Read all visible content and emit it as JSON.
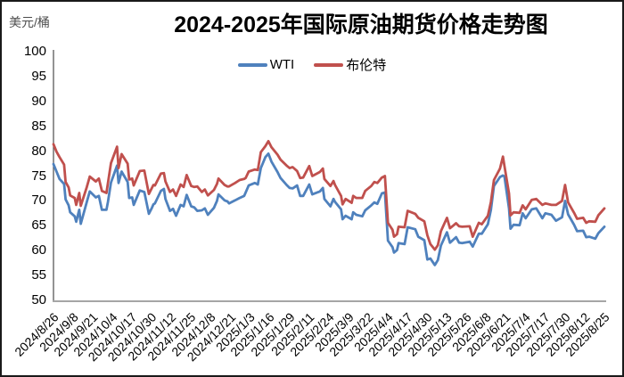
{
  "header": {
    "title": "2024-2025年国际原油期货价格走势图",
    "unit_label": "美元/桶"
  },
  "colors": {
    "wti": "#4F81BD",
    "brent": "#C0504D",
    "y_axis": "#595959",
    "x_axis": "#a6a6a6",
    "frame_border": "#1a1a1a"
  },
  "chart_data": {
    "type": "line",
    "title": "2024-2025年国际原油期货价格走势图",
    "xlabel": "",
    "ylabel": "美元/桶",
    "ylim": [
      50,
      100
    ],
    "ytick_step": 5,
    "grid": false,
    "legend_position": "top-center",
    "y_tick_labels": [
      "100",
      "95",
      "90",
      "85",
      "80",
      "75",
      "70",
      "65",
      "60",
      "55",
      "50"
    ],
    "x_tick_labels": [
      "2024/8/26",
      "2024/9/8",
      "2024/9/21",
      "2024/10/4",
      "2024/10/17",
      "2024/10/30",
      "2024/11/12",
      "2024/11/25",
      "2024/12/8",
      "2024/12/21",
      "2025/1/3",
      "2025/1/16",
      "2025/1/29",
      "2025/2/11",
      "2025/2/24",
      "2025/3/9",
      "2025/3/22",
      "2025/4/4",
      "2025/4/17",
      "2025/4/30",
      "2025/5/13",
      "2025/5/26",
      "2025/6/8",
      "2025/6/21",
      "2025/7/4",
      "2025/7/17",
      "2025/7/30",
      "2025/8/12",
      "2025/8/25"
    ],
    "x_range_days": [
      0,
      364
    ],
    "x_days": [
      0,
      2,
      4,
      7,
      8,
      10,
      11,
      14,
      15,
      17,
      18,
      22,
      24,
      28,
      30,
      32,
      35,
      36,
      38,
      42,
      43,
      45,
      49,
      50,
      52,
      53,
      57,
      60,
      63,
      65,
      66,
      67,
      71,
      73,
      74,
      77,
      79,
      81,
      84,
      86,
      88,
      91,
      93,
      95,
      98,
      100,
      102,
      106,
      108,
      109,
      113,
      115,
      116,
      120,
      123,
      126,
      127,
      129,
      133,
      135,
      137,
      140,
      142,
      144,
      148,
      150,
      154,
      156,
      158,
      161,
      163,
      165,
      169,
      171,
      176,
      178,
      179,
      183,
      185,
      186,
      190,
      191,
      193,
      197,
      198,
      200,
      204,
      206,
      210,
      212,
      214,
      217,
      219,
      221,
      224,
      225,
      227,
      228,
      232,
      234,
      239,
      241,
      245,
      247,
      249,
      252,
      254,
      256,
      260,
      262,
      266,
      268,
      270,
      275,
      277,
      281,
      283,
      287,
      289,
      291,
      295,
      297,
      298,
      301,
      302,
      304,
      308,
      310,
      312,
      316,
      319,
      323,
      325,
      329,
      332,
      336,
      338,
      340,
      344,
      346,
      350,
      352,
      354,
      358,
      360,
      364
    ],
    "series": [
      {
        "name": "WTI",
        "color": "#4F81BD",
        "values": [
          77.4,
          75.9,
          74.4,
          73.4,
          70.3,
          69.1,
          67.7,
          66.9,
          65.8,
          68.2,
          65.4,
          69.8,
          71.9,
          70.7,
          71.0,
          68.2,
          68.2,
          69.8,
          73.7,
          77.1,
          73.6,
          75.9,
          73.8,
          70.6,
          70.7,
          69.2,
          72.1,
          71.8,
          67.4,
          68.6,
          69.3,
          69.5,
          72.0,
          72.4,
          70.4,
          68.0,
          68.4,
          67.0,
          69.2,
          68.9,
          71.2,
          68.9,
          68.7,
          68.0,
          68.1,
          68.5,
          67.2,
          68.6,
          70.0,
          71.3,
          70.1,
          69.9,
          69.5,
          70.1,
          70.6,
          71.0,
          71.7,
          73.1,
          73.6,
          73.3,
          76.6,
          78.8,
          79.5,
          77.9,
          75.8,
          74.6,
          73.2,
          72.6,
          72.5,
          73.1,
          71.0,
          71.0,
          73.3,
          71.3,
          71.9,
          72.6,
          70.4,
          68.9,
          70.4,
          69.8,
          68.3,
          66.3,
          67.0,
          66.3,
          67.7,
          67.2,
          66.9,
          68.1,
          69.1,
          69.7,
          69.4,
          71.5,
          71.7,
          62.0,
          60.7,
          59.6,
          60.1,
          61.5,
          61.3,
          64.7,
          64.3,
          62.8,
          62.1,
          58.2,
          58.4,
          57.1,
          58.1,
          61.0,
          63.7,
          61.6,
          62.7,
          61.6,
          61.5,
          61.8,
          60.8,
          63.4,
          63.4,
          65.3,
          68.2,
          73.0,
          74.8,
          75.1,
          74.9,
          68.5,
          64.4,
          65.2,
          65.1,
          67.5,
          66.5,
          68.3,
          68.5,
          66.5,
          67.5,
          67.2,
          66.0,
          66.7,
          70.0,
          67.3,
          65.2,
          63.9,
          64.0,
          62.7,
          62.8,
          62.4,
          63.5,
          64.8
        ]
      },
      {
        "name": "布伦特",
        "color": "#C0504D",
        "values": [
          81.4,
          79.9,
          78.8,
          77.3,
          73.8,
          72.7,
          71.1,
          70.6,
          69.2,
          71.6,
          69.0,
          72.8,
          74.9,
          73.9,
          74.5,
          72.0,
          71.6,
          73.6,
          77.6,
          80.9,
          76.6,
          79.4,
          77.5,
          74.3,
          74.5,
          73.1,
          76.0,
          76.1,
          71.4,
          72.6,
          73.2,
          73.1,
          75.5,
          75.6,
          73.9,
          71.8,
          72.3,
          71.0,
          73.3,
          72.8,
          75.2,
          73.0,
          72.8,
          72.9,
          71.8,
          72.3,
          71.1,
          72.2,
          73.4,
          74.5,
          73.2,
          72.9,
          72.9,
          73.6,
          74.2,
          74.4,
          74.6,
          75.9,
          76.3,
          76.2,
          79.8,
          81.0,
          82.0,
          80.8,
          79.3,
          78.3,
          77.1,
          76.6,
          76.8,
          76.0,
          74.6,
          74.7,
          77.0,
          75.0,
          75.8,
          76.5,
          74.4,
          73.0,
          74.0,
          73.2,
          71.0,
          69.3,
          70.4,
          69.6,
          71.0,
          70.6,
          70.6,
          72.0,
          73.0,
          73.8,
          73.6,
          74.7,
          75.0,
          65.6,
          64.2,
          62.8,
          63.3,
          64.8,
          64.7,
          68.0,
          67.4,
          66.6,
          65.9,
          63.1,
          61.3,
          60.2,
          61.1,
          63.9,
          66.6,
          64.5,
          65.5,
          64.9,
          64.8,
          64.9,
          62.8,
          65.6,
          65.3,
          67.0,
          69.8,
          74.2,
          76.5,
          78.9,
          77.0,
          71.5,
          67.1,
          67.7,
          67.6,
          69.1,
          68.3,
          70.2,
          70.4,
          69.2,
          69.5,
          69.2,
          69.2,
          70.0,
          73.2,
          69.7,
          67.6,
          66.4,
          66.6,
          65.6,
          65.9,
          65.8,
          67.1,
          68.5
        ]
      }
    ]
  }
}
